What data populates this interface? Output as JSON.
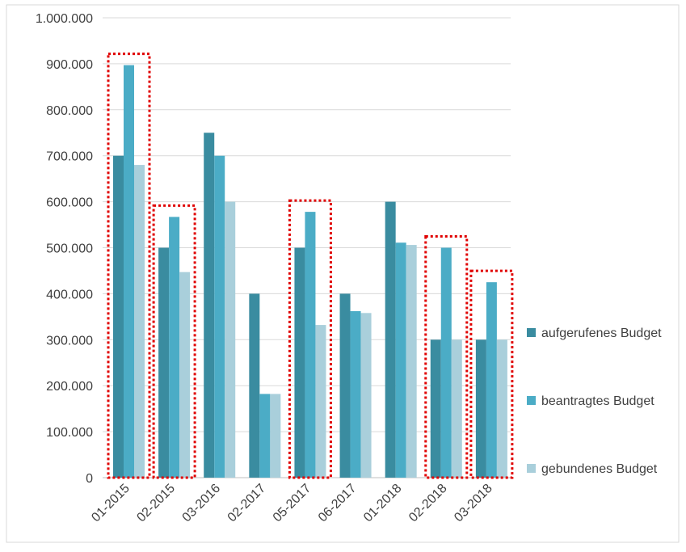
{
  "chart_data": {
    "type": "bar",
    "categories": [
      "01-2015",
      "02-2015",
      "03-2016",
      "02-2017",
      "05-2017",
      "06-2017",
      "01-2018",
      "02-2018",
      "03-2018"
    ],
    "series": [
      {
        "name": "aufgerufenes Budget",
        "color": "#3A8CA0",
        "values": [
          700000,
          500000,
          750000,
          400000,
          500000,
          400000,
          600000,
          300000,
          300000
        ]
      },
      {
        "name": "beantragtes Budget",
        "color": "#4BACC6",
        "values": [
          897000,
          567000,
          700000,
          182000,
          578000,
          362000,
          511000,
          500000,
          425000
        ]
      },
      {
        "name": "gebundenes Budget",
        "color": "#A9CFDB",
        "values": [
          680000,
          447000,
          600000,
          182000,
          332000,
          358000,
          506000,
          300000,
          300000
        ]
      }
    ],
    "yticks": [
      "0",
      "100.000",
      "200.000",
      "300.000",
      "400.000",
      "500.000",
      "600.000",
      "700.000",
      "800.000",
      "900.000",
      "1.000.000"
    ],
    "ylim": [
      0,
      1000000
    ],
    "grid": true,
    "legend_position": "right",
    "highlighted_categories": [
      "01-2015",
      "02-2015",
      "05-2017",
      "02-2018",
      "03-2018"
    ],
    "highlight_color": "#E00000"
  }
}
